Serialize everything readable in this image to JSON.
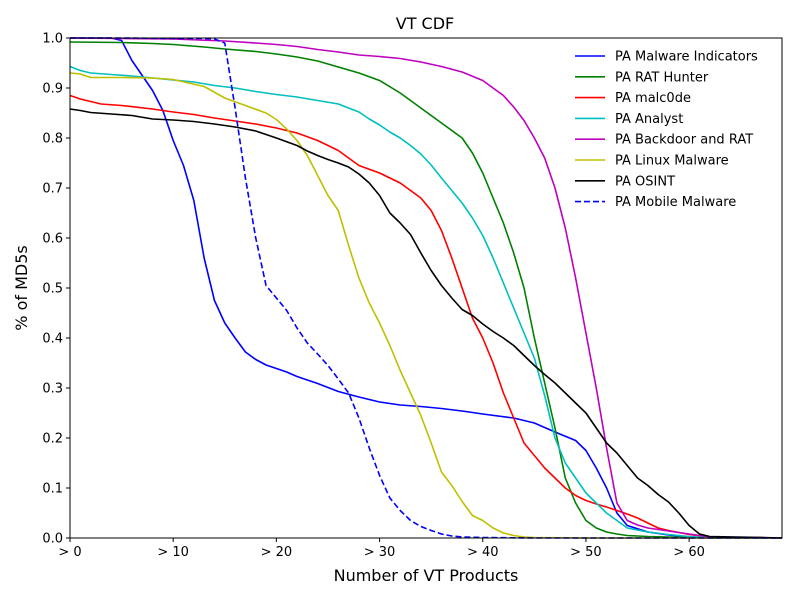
{
  "chart_data": {
    "type": "line",
    "title": "VT CDF",
    "xlabel": "Number of VT Products",
    "ylabel": "% of MD5s",
    "xlim": [
      0,
      69
    ],
    "ylim": [
      0,
      1.0
    ],
    "x_ticks": [
      0,
      10,
      20,
      30,
      40,
      50,
      60
    ],
    "x_tick_labels": [
      "> 0",
      "> 10",
      "> 20",
      "> 30",
      "> 40",
      "> 50",
      "> 60"
    ],
    "y_ticks": [
      0.0,
      0.1,
      0.2,
      0.3,
      0.4,
      0.5,
      0.6,
      0.7,
      0.8,
      0.9,
      1.0
    ],
    "y_tick_labels": [
      "0.0",
      "0.1",
      "0.2",
      "0.3",
      "0.4",
      "0.5",
      "0.6",
      "0.7",
      "0.8",
      "0.9",
      "1.0"
    ],
    "grid": false,
    "legend_position": "top-right",
    "series": [
      {
        "name": "PA Malware Indicators",
        "color": "#0000ff",
        "dash": "solid",
        "x": [
          0,
          2,
          4,
          5,
          6,
          7,
          8,
          9,
          10,
          11,
          12,
          13,
          14,
          15,
          16,
          17,
          18,
          19,
          20,
          21,
          22,
          24,
          26,
          28,
          30,
          32,
          34,
          36,
          38,
          40,
          43,
          45,
          47,
          49,
          50,
          51,
          52,
          53,
          54,
          56,
          58,
          60,
          62,
          69
        ],
        "y": [
          1.0,
          1.0,
          1.0,
          0.995,
          0.955,
          0.925,
          0.895,
          0.855,
          0.795,
          0.745,
          0.675,
          0.56,
          0.475,
          0.43,
          0.4,
          0.372,
          0.357,
          0.346,
          0.339,
          0.332,
          0.323,
          0.309,
          0.293,
          0.282,
          0.272,
          0.266,
          0.263,
          0.259,
          0.254,
          0.248,
          0.24,
          0.23,
          0.212,
          0.195,
          0.175,
          0.14,
          0.1,
          0.05,
          0.025,
          0.012,
          0.006,
          0.002,
          0.001,
          0.0
        ]
      },
      {
        "name": "PA RAT Hunter",
        "color": "#008000",
        "dash": "solid",
        "x": [
          0,
          5,
          8,
          10,
          13,
          15,
          18,
          20,
          22,
          24,
          26,
          28,
          30,
          32,
          34,
          36,
          38,
          39,
          40,
          41,
          42,
          43,
          44,
          45,
          46,
          47,
          48,
          49,
          50,
          51,
          52,
          53,
          54,
          56,
          58,
          60,
          62,
          69
        ],
        "y": [
          0.992,
          0.991,
          0.989,
          0.987,
          0.982,
          0.978,
          0.973,
          0.968,
          0.962,
          0.954,
          0.942,
          0.93,
          0.915,
          0.89,
          0.86,
          0.83,
          0.8,
          0.77,
          0.73,
          0.68,
          0.63,
          0.57,
          0.5,
          0.4,
          0.31,
          0.22,
          0.12,
          0.07,
          0.035,
          0.02,
          0.012,
          0.008,
          0.005,
          0.003,
          0.002,
          0.001,
          0.0,
          0.0
        ]
      },
      {
        "name": "PA malc0de",
        "color": "#ff0000",
        "dash": "solid",
        "x": [
          0,
          1,
          2,
          3,
          5,
          8,
          10,
          12,
          14,
          16,
          18,
          20,
          22,
          24,
          26,
          27,
          28,
          30,
          32,
          33,
          34,
          35,
          36,
          37,
          38,
          39,
          40,
          41,
          42,
          43,
          44,
          45,
          46,
          47,
          48,
          49,
          50,
          51,
          52,
          53,
          54,
          55,
          56,
          57,
          58,
          60,
          62,
          69
        ],
        "y": [
          0.885,
          0.878,
          0.873,
          0.868,
          0.865,
          0.858,
          0.852,
          0.847,
          0.84,
          0.834,
          0.828,
          0.82,
          0.81,
          0.795,
          0.775,
          0.76,
          0.745,
          0.73,
          0.71,
          0.695,
          0.68,
          0.655,
          0.615,
          0.56,
          0.5,
          0.44,
          0.4,
          0.35,
          0.29,
          0.24,
          0.19,
          0.165,
          0.14,
          0.12,
          0.1,
          0.085,
          0.075,
          0.068,
          0.062,
          0.055,
          0.048,
          0.04,
          0.03,
          0.02,
          0.015,
          0.007,
          0.002,
          0.0
        ]
      },
      {
        "name": "PA Analyst",
        "color": "#00bfbf",
        "dash": "solid",
        "x": [
          0,
          1,
          2,
          4,
          6,
          8,
          10,
          12,
          14,
          16,
          18,
          20,
          22,
          24,
          26,
          27,
          28,
          29,
          30,
          31,
          32,
          33,
          34,
          35,
          36,
          37,
          38,
          39,
          40,
          41,
          42,
          43,
          44,
          45,
          46,
          47,
          48,
          49,
          50,
          51,
          52,
          53,
          54,
          56,
          58,
          60,
          62,
          69
        ],
        "y": [
          0.943,
          0.935,
          0.93,
          0.927,
          0.924,
          0.92,
          0.916,
          0.912,
          0.905,
          0.9,
          0.893,
          0.887,
          0.882,
          0.875,
          0.868,
          0.86,
          0.852,
          0.838,
          0.826,
          0.812,
          0.8,
          0.785,
          0.768,
          0.746,
          0.72,
          0.695,
          0.67,
          0.64,
          0.605,
          0.56,
          0.51,
          0.46,
          0.41,
          0.36,
          0.285,
          0.2,
          0.15,
          0.12,
          0.09,
          0.07,
          0.05,
          0.035,
          0.02,
          0.012,
          0.007,
          0.003,
          0.001,
          0.0
        ]
      },
      {
        "name": "PA Backdoor and RAT",
        "color": "#bf00bf",
        "dash": "solid",
        "x": [
          0,
          5,
          10,
          15,
          18,
          20,
          22,
          24,
          26,
          28,
          30,
          32,
          34,
          36,
          38,
          40,
          41,
          42,
          43,
          44,
          45,
          46,
          47,
          48,
          49,
          50,
          51,
          52,
          53,
          54,
          55,
          56,
          58,
          60,
          62,
          69
        ],
        "y": [
          1.0,
          0.999,
          0.998,
          0.994,
          0.99,
          0.987,
          0.983,
          0.977,
          0.972,
          0.966,
          0.963,
          0.959,
          0.952,
          0.943,
          0.932,
          0.915,
          0.9,
          0.885,
          0.862,
          0.835,
          0.8,
          0.76,
          0.7,
          0.62,
          0.52,
          0.41,
          0.3,
          0.18,
          0.07,
          0.035,
          0.026,
          0.02,
          0.014,
          0.008,
          0.002,
          0.0
        ]
      },
      {
        "name": "PA Linux Malware",
        "color": "#bfbf00",
        "dash": "solid",
        "x": [
          0,
          1,
          2,
          3,
          5,
          8,
          10,
          13,
          15,
          17,
          19,
          20,
          21,
          22,
          23,
          24,
          25,
          26,
          27,
          28,
          29,
          30,
          31,
          32,
          33,
          34,
          35,
          36,
          37,
          38,
          39,
          40,
          41,
          42,
          43,
          44,
          45,
          50,
          60,
          69
        ],
        "y": [
          0.93,
          0.928,
          0.921,
          0.921,
          0.921,
          0.92,
          0.917,
          0.903,
          0.88,
          0.865,
          0.85,
          0.837,
          0.818,
          0.795,
          0.765,
          0.725,
          0.685,
          0.655,
          0.585,
          0.52,
          0.47,
          0.43,
          0.385,
          0.335,
          0.29,
          0.245,
          0.19,
          0.132,
          0.105,
          0.073,
          0.045,
          0.035,
          0.02,
          0.01,
          0.005,
          0.002,
          0.001,
          0.0,
          0.0,
          0.0
        ]
      },
      {
        "name": "PA OSINT",
        "color": "#000000",
        "dash": "solid",
        "x": [
          0,
          1,
          2,
          4,
          6,
          8,
          10,
          12,
          14,
          16,
          18,
          20,
          22,
          23,
          24,
          25,
          26,
          27,
          28,
          29,
          30,
          31,
          32,
          33,
          34,
          35,
          36,
          37,
          38,
          39,
          40,
          41,
          42,
          43,
          44,
          45,
          46,
          47,
          48,
          49,
          50,
          51,
          52,
          53,
          54,
          55,
          56,
          57,
          58,
          59,
          60,
          61,
          62,
          69
        ],
        "y": [
          0.858,
          0.855,
          0.851,
          0.848,
          0.845,
          0.838,
          0.836,
          0.833,
          0.828,
          0.822,
          0.814,
          0.8,
          0.785,
          0.774,
          0.765,
          0.757,
          0.75,
          0.742,
          0.728,
          0.71,
          0.685,
          0.65,
          0.63,
          0.607,
          0.57,
          0.535,
          0.505,
          0.48,
          0.457,
          0.445,
          0.428,
          0.413,
          0.4,
          0.385,
          0.365,
          0.345,
          0.327,
          0.31,
          0.29,
          0.27,
          0.25,
          0.22,
          0.19,
          0.17,
          0.145,
          0.12,
          0.105,
          0.087,
          0.072,
          0.05,
          0.025,
          0.008,
          0.003,
          0.0
        ]
      },
      {
        "name": "PA Mobile Malware",
        "color": "#0000ff",
        "dash": "dashed",
        "x": [
          0,
          5,
          10,
          13,
          14,
          15,
          16,
          17,
          18,
          19,
          20,
          21,
          22,
          23,
          24,
          25,
          26,
          27,
          28,
          29,
          30,
          31,
          32,
          33,
          34,
          35,
          36,
          37,
          38,
          40,
          45,
          50,
          69
        ],
        "y": [
          1.0,
          1.0,
          0.999,
          0.999,
          0.998,
          0.99,
          0.86,
          0.72,
          0.6,
          0.505,
          0.48,
          0.455,
          0.42,
          0.39,
          0.368,
          0.345,
          0.318,
          0.29,
          0.24,
          0.18,
          0.125,
          0.08,
          0.055,
          0.035,
          0.023,
          0.015,
          0.008,
          0.004,
          0.002,
          0.001,
          0.0,
          0.0,
          0.0
        ]
      }
    ]
  }
}
